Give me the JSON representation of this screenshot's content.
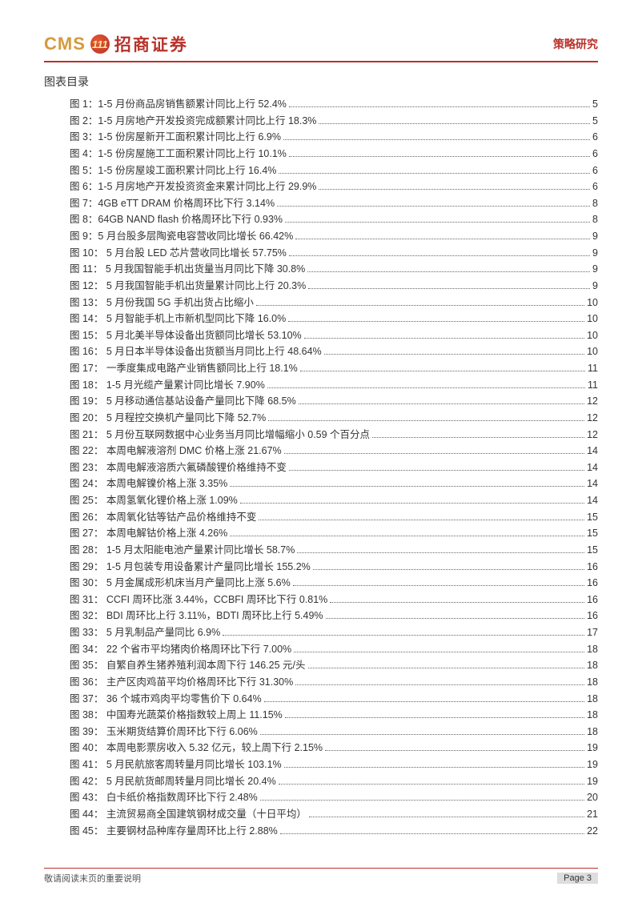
{
  "header": {
    "cms": "CMS",
    "logo_glyph": "111",
    "company_cn": "招商证券",
    "category": "策略研究"
  },
  "section_title": "图表目录",
  "toc": [
    {
      "label": "图 1：1-5 月份商品房销售额累计同比上行 52.4%",
      "page": "5"
    },
    {
      "label": "图 2：1-5 月房地产开发投资完成额累计同比上行 18.3%",
      "page": "5"
    },
    {
      "label": "图 3：1-5 份房屋新开工面积累计同比上行 6.9%",
      "page": "6"
    },
    {
      "label": "图 4：1-5 份房屋施工工面积累计同比上行 10.1%",
      "page": "6"
    },
    {
      "label": "图 5：1-5 份房屋竣工面积累计同比上行 16.4%",
      "page": "6"
    },
    {
      "label": "图 6：1-5 月房地产开发投资资金来累计同比上行 29.9%",
      "page": "6"
    },
    {
      "label": "图 7：4GB eTT DRAM 价格周环比下行 3.14%",
      "page": "8"
    },
    {
      "label": "图 8：64GB NAND flash 价格周环比下行 0.93%",
      "page": "8"
    },
    {
      "label": "图 9：5 月台股多层陶瓷电容营收同比增长 66.42%",
      "page": "9"
    },
    {
      "label": "图 10： 5 月台股 LED 芯片营收同比增长 57.75%",
      "page": "9"
    },
    {
      "label": "图 11： 5 月我国智能手机出货量当月同比下降 30.8%",
      "page": "9"
    },
    {
      "label": "图 12： 5 月我国智能手机出货量累计同比上行 20.3%",
      "page": "9"
    },
    {
      "label": "图 13： 5 月份我国 5G 手机出货占比缩小",
      "page": "10"
    },
    {
      "label": "图 14： 5 月智能手机上市新机型同比下降 16.0%",
      "page": "10"
    },
    {
      "label": "图 15： 5 月北美半导体设备出货额同比增长 53.10%",
      "page": "10"
    },
    {
      "label": "图 16： 5 月日本半导体设备出货额当月同比上行 48.64%",
      "page": "10"
    },
    {
      "label": "图 17： 一季度集成电路产业销售额同比上行 18.1%",
      "page": "11"
    },
    {
      "label": "图 18： 1-5 月光缆产量累计同比增长 7.90%",
      "page": "11"
    },
    {
      "label": "图 19： 5 月移动通信基站设备产量同比下降 68.5%",
      "page": "12"
    },
    {
      "label": "图 20：  5 月程控交换机产量同比下降 52.7%",
      "page": "12"
    },
    {
      "label": "图 21： 5 月份互联网数据中心业务当月同比增幅缩小 0.59 个百分点",
      "page": "12"
    },
    {
      "label": "图 22： 本周电解液溶剂 DMC 价格上涨 21.67%",
      "page": "14"
    },
    {
      "label": "图 23： 本周电解液溶质六氟磷酸锂价格维持不变",
      "page": "14"
    },
    {
      "label": "图 24： 本周电解镍价格上涨 3.35%",
      "page": "14"
    },
    {
      "label": "图 25： 本周氢氧化锂价格上涨 1.09%",
      "page": "14"
    },
    {
      "label": "图 26： 本周氧化钴等钴产品价格维持不变",
      "page": "15"
    },
    {
      "label": "图 27： 本周电解钴价格上涨 4.26%",
      "page": "15"
    },
    {
      "label": "图 28： 1-5 月太阳能电池产量累计同比增长 58.7%",
      "page": "15"
    },
    {
      "label": "图 29： 1-5 月包装专用设备累计产量同比增长 155.2%",
      "page": "16"
    },
    {
      "label": "图 30： 5 月金属成形机床当月产量同比上涨 5.6%",
      "page": "16"
    },
    {
      "label": "图 31： CCFI 周环比涨 3.44%，CCBFI 周环比下行 0.81%",
      "page": "16"
    },
    {
      "label": "图 32： BDI 周环比上行 3.11%，BDTI 周环比上行 5.49%",
      "page": "16"
    },
    {
      "label": "图 33： 5 月乳制品产量同比 6.9%",
      "page": "17"
    },
    {
      "label": "图 34： 22 个省市平均猪肉价格周环比下行 7.00%",
      "page": "18"
    },
    {
      "label": "图 35：  自繁自养生猪养殖利润本周下行 146.25 元/头",
      "page": "18"
    },
    {
      "label": "图 36： 主产区肉鸡苗平均价格周环比下行 31.30%",
      "page": "18"
    },
    {
      "label": "图 37： 36 个城市鸡肉平均零售价下 0.64%",
      "page": "18"
    },
    {
      "label": "图 38： 中国寿光蔬菜价格指数较上周上 11.15%",
      "page": "18"
    },
    {
      "label": "图 39： 玉米期货结算价周环比下行 6.06%",
      "page": "18"
    },
    {
      "label": "图 40： 本周电影票房收入 5.32 亿元，较上周下行 2.15%",
      "page": "19"
    },
    {
      "label": "图 41： 5 月民航旅客周转量月同比增长 103.1%",
      "page": "19"
    },
    {
      "label": "图 42： 5 月民航货邮周转量月同比增长 20.4%",
      "page": "19"
    },
    {
      "label": "图 43： 白卡纸价格指数周环比下行 2.48%",
      "page": "20"
    },
    {
      "label": "图 44： 主流贸易商全国建筑钢材成交量（十日平均）",
      "page": "21"
    },
    {
      "label": "图 45： 主要钢材品种库存量周环比上行 2.88%",
      "page": "22"
    }
  ],
  "footer": {
    "note": "敬请阅读末页的重要说明",
    "page_label": "Page 3"
  },
  "colors": {
    "brand_red": "#b8322a",
    "brand_gold": "#d49a3d",
    "text": "#333333"
  }
}
